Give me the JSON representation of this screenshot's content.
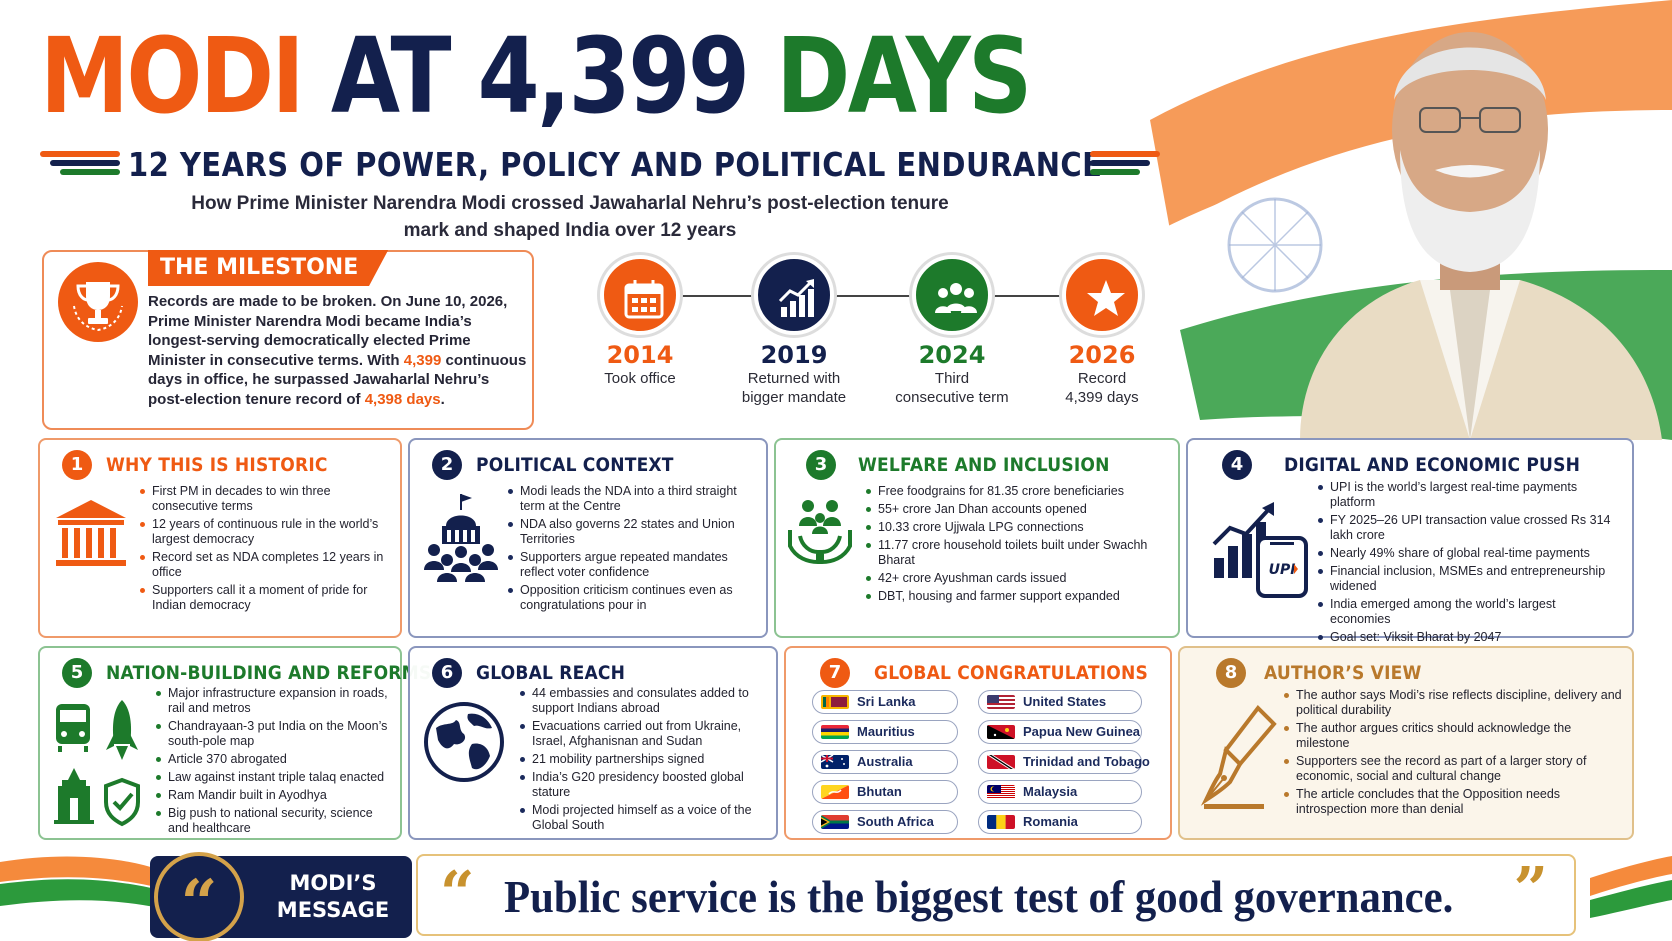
{
  "colors": {
    "saffron": "#ef5a13",
    "navy": "#13204d",
    "green": "#1d7a2b",
    "gold": "#c8922e"
  },
  "header": {
    "title_part1": "MODI",
    "title_part2": "AT",
    "title_part3": "4,399",
    "title_part4": "DAYS",
    "subtitle": "12 YEARS OF POWER, POLICY AND POLITICAL ENDURANCE",
    "tagline_line1": "How Prime Minister Narendra Modi crossed Jawaharlal Nehru’s post-election tenure",
    "tagline_line2": "mark and shaped India over 12 years"
  },
  "milestone": {
    "icon": "trophy-icon",
    "title": "THE MILESTONE",
    "text_a": "Records are made to be broken. On June 10, 2026, Prime Minister Narendra Modi became India’s longest-serving democratically elected Prime Minister in consecutive terms. With ",
    "highlight_a": "4,399",
    "text_b": " continuous days in office, he surpassed Jawaharlal Nehru’s post-election tenure record of ",
    "highlight_b": "4,398 days",
    "text_c": "."
  },
  "timeline": [
    {
      "year": "2014",
      "caption_1": "Took office",
      "caption_2": "",
      "icon": "calendar-icon",
      "color": "#ef5a13"
    },
    {
      "year": "2019",
      "caption_1": "Returned with",
      "caption_2": "bigger mandate",
      "icon": "growth-chart-icon",
      "color": "#13204d"
    },
    {
      "year": "2024",
      "caption_1": "Third",
      "caption_2": "consecutive term",
      "icon": "people-group-icon",
      "color": "#1d7a2b"
    },
    {
      "year": "2026",
      "caption_1": "Record",
      "caption_2": "4,399 days",
      "icon": "star-icon",
      "color": "#ef5a13"
    }
  ],
  "cards": {
    "historic": {
      "number": "1",
      "title": "WHY THIS IS HISTORIC",
      "icon": "parliament-icon",
      "items": [
        "First PM in decades to win three consecutive terms",
        "12 years of continuous rule in the world’s largest democracy",
        "Record set as NDA completes 12 years in office",
        "Supporters call it a moment of pride for Indian democracy"
      ]
    },
    "political": {
      "number": "2",
      "title": "POLITICAL CONTEXT",
      "icon": "crowd-building-icon",
      "items": [
        "Modi leads the NDA into a third straight term at the Centre",
        "NDA also governs 22 states and Union Territories",
        "Supporters argue repeated mandates reflect voter confidence",
        "Opposition criticism continues even as congratulations pour in"
      ]
    },
    "welfare": {
      "number": "3",
      "title": "WELFARE AND INCLUSION",
      "icon": "caring-hands-icon",
      "items": [
        "Free foodgrains for 81.35 crore beneficiaries",
        "55+ crore Jan Dhan accounts opened",
        "10.33 crore Ujjwala LPG connections",
        "11.77 crore household toilets built under Swachh Bharat",
        "42+ crore Ayushman cards issued",
        "DBT, housing and farmer support expanded"
      ]
    },
    "digital": {
      "number": "4",
      "title": "DIGITAL AND ECONOMIC PUSH",
      "icon": "upi-phone-chart-icon",
      "phone_label": "UPI",
      "items": [
        "UPI is the world’s largest real-time payments platform",
        "FY 2025–26 UPI transaction value crossed Rs 314 lakh crore",
        "Nearly 49% share of global real-time payments",
        "Financial inclusion, MSMEs and entrepreneurship widened",
        "India emerged among the world’s largest economies",
        "Goal set: Viksit Bharat by 2047"
      ]
    },
    "nation": {
      "number": "5",
      "title": "NATION-BUILDING AND REFORMS",
      "icon": "train-rocket-temple-shield-icon",
      "items": [
        "Major infrastructure expansion in roads, rail and metros",
        "Chandrayaan-3 put India on the Moon’s south-pole map",
        "Article 370 abrogated",
        "Law against instant triple talaq enacted",
        "Ram Mandir built in Ayodhya",
        "Big push to national security, science and healthcare"
      ]
    },
    "global": {
      "number": "6",
      "title": "GLOBAL REACH",
      "icon": "globe-icon",
      "items": [
        "44 embassies and consulates added to support Indians abroad",
        "Evacuations carried out from Ukraine, Israel, Afghanisnan and Sudan",
        "21 mobility partnerships signed",
        "India’s G20 presidency boosted global stature",
        "Modi projected himself as a voice of the Global South"
      ]
    },
    "congrats": {
      "number": "7",
      "title": "GLOBAL CONGRATULATIONS",
      "countries": [
        {
          "name": "Sri Lanka",
          "icon": "flag-sri-lanka-icon"
        },
        {
          "name": "United States",
          "icon": "flag-united-states-icon"
        },
        {
          "name": "Mauritius",
          "icon": "flag-mauritius-icon"
        },
        {
          "name": "Papua New Guinea",
          "icon": "flag-papua-new-guinea-icon"
        },
        {
          "name": "Australia",
          "icon": "flag-australia-icon"
        },
        {
          "name": "Trinidad and Tobago",
          "icon": "flag-trinidad-tobago-icon"
        },
        {
          "name": "Bhutan",
          "icon": "flag-bhutan-icon"
        },
        {
          "name": "Malaysia",
          "icon": "flag-malaysia-icon"
        },
        {
          "name": "South Africa",
          "icon": "flag-south-africa-icon"
        },
        {
          "name": "Romania",
          "icon": "flag-romania-icon"
        }
      ]
    },
    "author": {
      "number": "8",
      "title": "AUTHOR’S VIEW",
      "icon": "fountain-pen-icon",
      "items": [
        "The author says Modi’s rise reflects discipline, delivery and political durability",
        "The author argues critics should acknowledge the milestone",
        "Supporters see the record as part of a larger story of economic, social and cultural change",
        "The article concludes that the Opposition needs introspection more than denial"
      ]
    }
  },
  "quote": {
    "badge_line1": "MODI’S",
    "badge_line2": "MESSAGE",
    "badge_icon": "quote-icon",
    "badge_mark": "“",
    "open_mark": "“",
    "text": "Public service is the biggest test of good governance.",
    "close_mark": "”"
  }
}
